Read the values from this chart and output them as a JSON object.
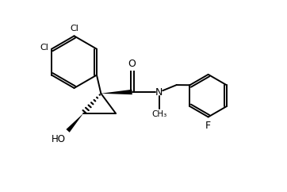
{
  "bg_color": "#ffffff",
  "line_color": "#000000",
  "bond_lw": 1.4,
  "figsize": [
    3.62,
    2.42
  ],
  "dpi": 100,
  "xlim": [
    0,
    10
  ],
  "ylim": [
    0,
    6.7
  ]
}
